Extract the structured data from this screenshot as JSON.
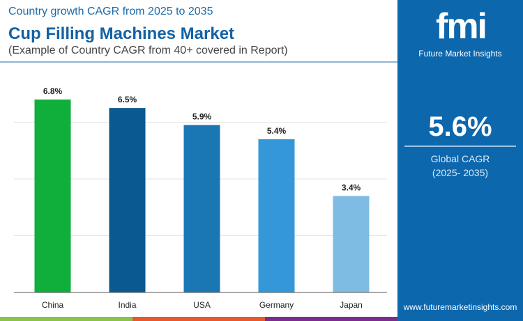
{
  "header": {
    "subtitle": "Country growth CAGR from 2025 to 2035",
    "title": "Cup Filling Machines Market",
    "note": "(Example of Country CAGR from 40+ covered in Report)"
  },
  "brand": {
    "logo_text": "fmi",
    "name": "Future Market Insights",
    "url": "www.futuremarketinsights.com"
  },
  "summary": {
    "value": "5.6%",
    "label": "Global CAGR",
    "period": "(2025- 2035)"
  },
  "colors": {
    "panel": "#0d67ad",
    "title": "#1262a6",
    "stripes": [
      "#8bc34a",
      "#e8582b",
      "#7b2d8e"
    ]
  },
  "chart_data": {
    "type": "bar",
    "title": "",
    "xlabel": "",
    "ylabel": "",
    "categories": [
      "China",
      "India",
      "USA",
      "Germany",
      "Japan"
    ],
    "values": [
      6.8,
      6.5,
      5.9,
      5.4,
      3.4
    ],
    "labels": [
      "6.8%",
      "6.5%",
      "5.9%",
      "5.4%",
      "3.4%"
    ],
    "colors": [
      "#10ae3b",
      "#0a5a8f",
      "#1b77b4",
      "#3498d8",
      "#7fbce4"
    ],
    "ylim": [
      0,
      8
    ],
    "grid": true,
    "legend": "none"
  }
}
